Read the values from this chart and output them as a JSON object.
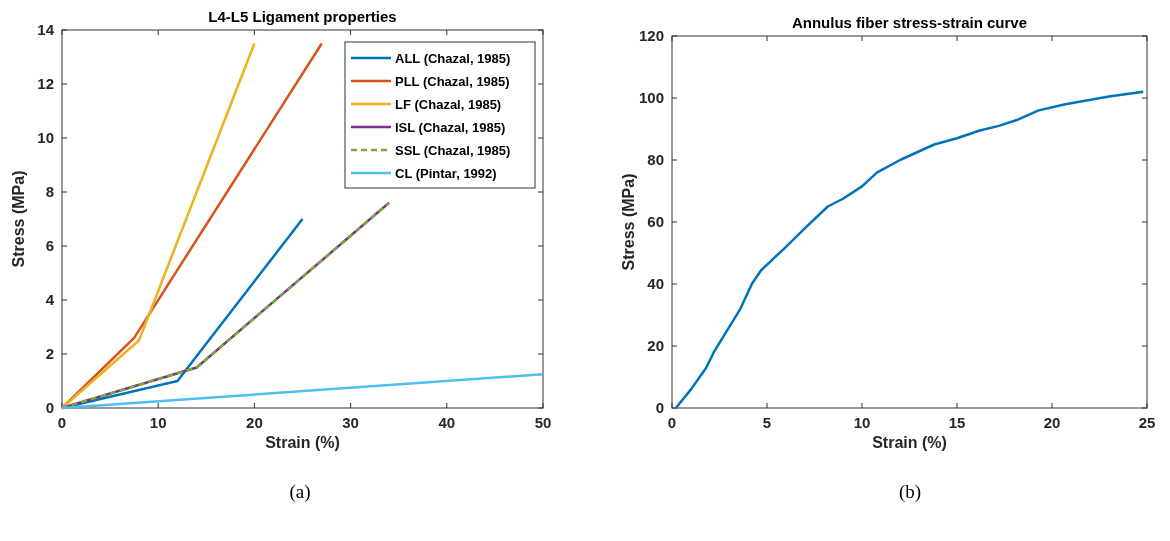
{
  "chart_data": [
    {
      "type": "line",
      "title": "L4-L5 Ligament properties",
      "xlabel": "Strain (%)",
      "ylabel": "Stress (MPa)",
      "xlim": [
        0,
        50
      ],
      "xticks": [
        0,
        10,
        20,
        30,
        40,
        50
      ],
      "ylim": [
        0,
        14
      ],
      "yticks": [
        0,
        2,
        4,
        6,
        8,
        10,
        12,
        14
      ],
      "grid": false,
      "legend": "top right",
      "annotations": [
        "(a)"
      ],
      "series": [
        {
          "name": "ALL (Chazal, 1985)",
          "color": "#0072bd",
          "x": [
            0,
            12,
            25
          ],
          "values": [
            0,
            1,
            7
          ]
        },
        {
          "name": "PLL (Chazal, 1985)",
          "color": "#d95319",
          "x": [
            0,
            7.5,
            27
          ],
          "values": [
            0,
            2.6,
            13.5
          ]
        },
        {
          "name": "LF (Chazal, 1985)",
          "color": "#edb120",
          "x": [
            0,
            8,
            20
          ],
          "values": [
            0,
            2.5,
            13.5
          ]
        },
        {
          "name": "ISL (Chazal, 1985)",
          "color": "#7e2f8e",
          "x": [
            0,
            14,
            34
          ],
          "values": [
            0,
            1.5,
            7.6
          ]
        },
        {
          "name": "SSL (Chazal, 1985)",
          "color": "#77ac30",
          "line_style": "dashed",
          "x": [
            0,
            14,
            34
          ],
          "values": [
            0,
            1.5,
            7.6
          ]
        },
        {
          "name": "CL (Pintar, 1992)",
          "color": "#4dbeee",
          "x": [
            0,
            50
          ],
          "values": [
            0,
            1.25
          ]
        }
      ]
    },
    {
      "type": "line",
      "title": "Annulus fiber stress-strain curve",
      "xlabel": "Strain (%)",
      "ylabel": "Stress (MPa)",
      "xlim": [
        0,
        25
      ],
      "xticks": [
        0,
        5,
        10,
        15,
        20,
        25
      ],
      "ylim": [
        0,
        120
      ],
      "yticks": [
        0,
        20,
        40,
        60,
        80,
        100,
        120
      ],
      "grid": false,
      "annotations": [
        "(b)"
      ],
      "series": [
        {
          "color": "#0072bd",
          "x": [
            0.2,
            1,
            1.8,
            2.2,
            3,
            3.6,
            4.2,
            4.7,
            6,
            7,
            8.2,
            9,
            10,
            10.8,
            12,
            13.8,
            15,
            16.2,
            17.2,
            18.2,
            19.3,
            20.7,
            23,
            24.8
          ],
          "values": [
            0,
            6,
            13,
            18,
            26,
            32,
            40,
            44.5,
            52,
            58,
            65,
            67.5,
            71.5,
            76,
            80,
            85,
            87,
            89.5,
            91,
            93,
            96,
            98,
            100.5,
            102
          ]
        }
      ]
    }
  ]
}
